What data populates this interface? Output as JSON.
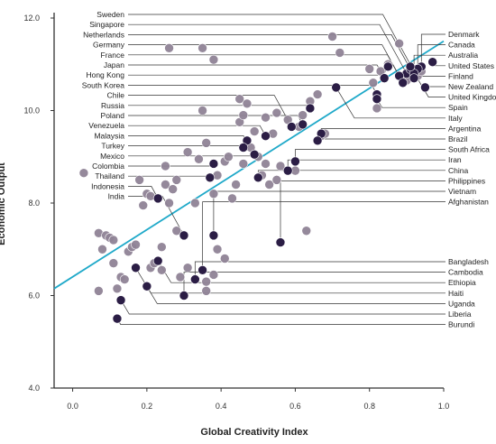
{
  "chart_data": {
    "type": "scatter",
    "title": "",
    "xlabel": "Global Creativity Index",
    "ylabel": "Economic Output",
    "xlim": [
      -0.05,
      1.0
    ],
    "ylim": [
      4.0,
      12.0
    ],
    "x_ticks": [
      0.0,
      0.2,
      0.4,
      0.6,
      0.8,
      1.0
    ],
    "x_tick_labels": [
      "0.0",
      "0.2",
      "0.4",
      "0.6",
      "0.8",
      "1.0"
    ],
    "y_ticks": [
      4.0,
      6.0,
      8.0,
      10.0,
      12.0
    ],
    "y_tick_labels": [
      "4.0",
      "6.0",
      "8.0",
      "10.0",
      "12.0"
    ],
    "grid": false,
    "colors": {
      "highlighted": "#2b1d45",
      "other": "#8f8396",
      "regression_line": "#1fa9c9",
      "axis": "#333333"
    },
    "regression_line": {
      "x": [
        -0.05,
        1.0
      ],
      "y": [
        6.15,
        11.5
      ]
    },
    "labeled_countries": [
      {
        "name": "Sweden",
        "x": 0.92,
        "y": 10.85,
        "side": "left"
      },
      {
        "name": "Singapore",
        "x": 0.9,
        "y": 10.8,
        "side": "left"
      },
      {
        "name": "Netherlands",
        "x": 0.91,
        "y": 10.9,
        "side": "left"
      },
      {
        "name": "Germany",
        "x": 0.88,
        "y": 10.75,
        "side": "left"
      },
      {
        "name": "France",
        "x": 0.89,
        "y": 10.6,
        "side": "left"
      },
      {
        "name": "Japan",
        "x": 0.84,
        "y": 10.7,
        "side": "left"
      },
      {
        "name": "Hong Kong",
        "x": 0.85,
        "y": 10.95,
        "side": "left"
      },
      {
        "name": "South Korea",
        "x": 0.82,
        "y": 10.35,
        "side": "left"
      },
      {
        "name": "Chile",
        "x": 0.59,
        "y": 9.65,
        "side": "left"
      },
      {
        "name": "Russia",
        "x": 0.64,
        "y": 10.05,
        "side": "left"
      },
      {
        "name": "Poland",
        "x": 0.62,
        "y": 9.7,
        "side": "left"
      },
      {
        "name": "Venezuela",
        "x": 0.52,
        "y": 9.45,
        "side": "left"
      },
      {
        "name": "Malaysia",
        "x": 0.47,
        "y": 9.35,
        "side": "left"
      },
      {
        "name": "Turkey",
        "x": 0.46,
        "y": 9.2,
        "side": "left"
      },
      {
        "name": "Mexico",
        "x": 0.49,
        "y": 9.05,
        "side": "left"
      },
      {
        "name": "Colombia",
        "x": 0.38,
        "y": 8.85,
        "side": "left"
      },
      {
        "name": "Thailand",
        "x": 0.37,
        "y": 8.55,
        "side": "left"
      },
      {
        "name": "Indonesia",
        "x": 0.23,
        "y": 8.1,
        "side": "left"
      },
      {
        "name": "India",
        "x": 0.3,
        "y": 7.3,
        "side": "left"
      },
      {
        "name": "Denmark",
        "x": 0.94,
        "y": 10.95,
        "side": "right"
      },
      {
        "name": "Canada",
        "x": 0.93,
        "y": 10.9,
        "side": "right"
      },
      {
        "name": "Australia",
        "x": 0.92,
        "y": 10.8,
        "side": "right"
      },
      {
        "name": "United States",
        "x": 0.97,
        "y": 11.05,
        "side": "right"
      },
      {
        "name": "Finland",
        "x": 0.92,
        "y": 10.7,
        "side": "right"
      },
      {
        "name": "New Zealand",
        "x": 0.95,
        "y": 10.5,
        "side": "right"
      },
      {
        "name": "United Kingdom",
        "x": 0.91,
        "y": 10.95,
        "side": "right"
      },
      {
        "name": "Spain",
        "x": 0.82,
        "y": 10.25,
        "side": "right"
      },
      {
        "name": "Italy",
        "x": 0.71,
        "y": 10.5,
        "side": "right"
      },
      {
        "name": "Argentina",
        "x": 0.67,
        "y": 9.5,
        "side": "right"
      },
      {
        "name": "Brazil",
        "x": 0.66,
        "y": 9.35,
        "side": "right"
      },
      {
        "name": "South Africa",
        "x": 0.6,
        "y": 8.9,
        "side": "right"
      },
      {
        "name": "Iran",
        "x": 0.58,
        "y": 8.7,
        "side": "right"
      },
      {
        "name": "China",
        "x": 0.5,
        "y": 8.55,
        "side": "right"
      },
      {
        "name": "Philippines",
        "x": 0.56,
        "y": 7.15,
        "side": "right"
      },
      {
        "name": "Vietnam",
        "x": 0.38,
        "y": 7.3,
        "side": "right"
      },
      {
        "name": "Afghanistan",
        "x": 0.35,
        "y": 6.55,
        "side": "right"
      },
      {
        "name": "Bangladesh",
        "x": 0.33,
        "y": 6.35,
        "side": "right"
      },
      {
        "name": "Cambodia",
        "x": 0.3,
        "y": 6.0,
        "side": "right"
      },
      {
        "name": "Ethiopia",
        "x": 0.23,
        "y": 6.75,
        "side": "right"
      },
      {
        "name": "Haiti",
        "x": 0.2,
        "y": 6.2,
        "side": "right"
      },
      {
        "name": "Uganda",
        "x": 0.17,
        "y": 6.6,
        "side": "right"
      },
      {
        "name": "Liberia",
        "x": 0.13,
        "y": 5.9,
        "side": "right"
      },
      {
        "name": "Burundi",
        "x": 0.12,
        "y": 5.5,
        "side": "right"
      }
    ],
    "other_points": [
      {
        "x": 0.03,
        "y": 8.65
      },
      {
        "x": 0.07,
        "y": 7.35
      },
      {
        "x": 0.07,
        "y": 6.1
      },
      {
        "x": 0.08,
        "y": 7.0
      },
      {
        "x": 0.09,
        "y": 7.3
      },
      {
        "x": 0.1,
        "y": 7.25
      },
      {
        "x": 0.11,
        "y": 6.7
      },
      {
        "x": 0.11,
        "y": 7.2
      },
      {
        "x": 0.12,
        "y": 6.15
      },
      {
        "x": 0.13,
        "y": 6.4
      },
      {
        "x": 0.14,
        "y": 6.35
      },
      {
        "x": 0.15,
        "y": 6.95
      },
      {
        "x": 0.16,
        "y": 7.05
      },
      {
        "x": 0.17,
        "y": 7.1
      },
      {
        "x": 0.18,
        "y": 8.5
      },
      {
        "x": 0.19,
        "y": 7.95
      },
      {
        "x": 0.2,
        "y": 8.2
      },
      {
        "x": 0.21,
        "y": 8.15
      },
      {
        "x": 0.21,
        "y": 6.6
      },
      {
        "x": 0.22,
        "y": 6.7
      },
      {
        "x": 0.24,
        "y": 7.05
      },
      {
        "x": 0.24,
        "y": 6.55
      },
      {
        "x": 0.25,
        "y": 8.8
      },
      {
        "x": 0.25,
        "y": 8.4
      },
      {
        "x": 0.26,
        "y": 8.0
      },
      {
        "x": 0.26,
        "y": 11.35
      },
      {
        "x": 0.27,
        "y": 8.3
      },
      {
        "x": 0.28,
        "y": 7.4
      },
      {
        "x": 0.28,
        "y": 8.5
      },
      {
        "x": 0.29,
        "y": 6.4
      },
      {
        "x": 0.31,
        "y": 6.6
      },
      {
        "x": 0.31,
        "y": 9.1
      },
      {
        "x": 0.33,
        "y": 8.0
      },
      {
        "x": 0.34,
        "y": 8.95
      },
      {
        "x": 0.35,
        "y": 11.35
      },
      {
        "x": 0.35,
        "y": 10.0
      },
      {
        "x": 0.36,
        "y": 9.3
      },
      {
        "x": 0.36,
        "y": 6.1
      },
      {
        "x": 0.36,
        "y": 6.3
      },
      {
        "x": 0.38,
        "y": 11.1
      },
      {
        "x": 0.38,
        "y": 8.2
      },
      {
        "x": 0.38,
        "y": 6.45
      },
      {
        "x": 0.39,
        "y": 8.6
      },
      {
        "x": 0.39,
        "y": 7.0
      },
      {
        "x": 0.41,
        "y": 8.9
      },
      {
        "x": 0.41,
        "y": 6.8
      },
      {
        "x": 0.42,
        "y": 9.0
      },
      {
        "x": 0.43,
        "y": 8.1
      },
      {
        "x": 0.44,
        "y": 8.4
      },
      {
        "x": 0.45,
        "y": 10.25
      },
      {
        "x": 0.45,
        "y": 9.75
      },
      {
        "x": 0.46,
        "y": 9.9
      },
      {
        "x": 0.46,
        "y": 8.85
      },
      {
        "x": 0.47,
        "y": 10.15
      },
      {
        "x": 0.48,
        "y": 9.2
      },
      {
        "x": 0.49,
        "y": 9.55
      },
      {
        "x": 0.5,
        "y": 9.0
      },
      {
        "x": 0.51,
        "y": 8.6
      },
      {
        "x": 0.52,
        "y": 9.85
      },
      {
        "x": 0.52,
        "y": 8.85
      },
      {
        "x": 0.53,
        "y": 8.4
      },
      {
        "x": 0.54,
        "y": 9.5
      },
      {
        "x": 0.55,
        "y": 8.5
      },
      {
        "x": 0.55,
        "y": 9.95
      },
      {
        "x": 0.56,
        "y": 8.8
      },
      {
        "x": 0.58,
        "y": 9.8
      },
      {
        "x": 0.6,
        "y": 8.7
      },
      {
        "x": 0.61,
        "y": 9.65
      },
      {
        "x": 0.62,
        "y": 9.9
      },
      {
        "x": 0.63,
        "y": 7.4
      },
      {
        "x": 0.64,
        "y": 10.2
      },
      {
        "x": 0.66,
        "y": 10.35
      },
      {
        "x": 0.67,
        "y": 9.45
      },
      {
        "x": 0.68,
        "y": 9.5
      },
      {
        "x": 0.7,
        "y": 11.6
      },
      {
        "x": 0.72,
        "y": 11.25
      },
      {
        "x": 0.8,
        "y": 10.9
      },
      {
        "x": 0.81,
        "y": 10.6
      },
      {
        "x": 0.82,
        "y": 10.05
      },
      {
        "x": 0.83,
        "y": 10.85
      },
      {
        "x": 0.85,
        "y": 11.0
      },
      {
        "x": 0.88,
        "y": 11.45
      },
      {
        "x": 0.9,
        "y": 10.65
      },
      {
        "x": 0.93,
        "y": 10.75
      },
      {
        "x": 0.94,
        "y": 10.85
      }
    ]
  }
}
